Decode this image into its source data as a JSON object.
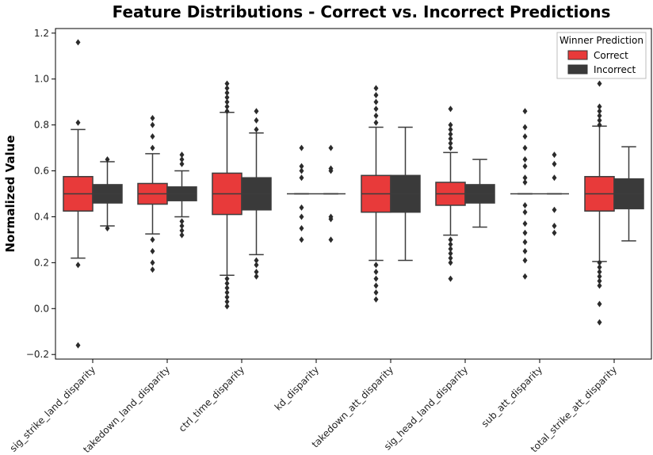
{
  "chart_data": {
    "type": "box",
    "title": "Feature Distributions - Correct vs. Incorrect Predictions",
    "xlabel": "",
    "ylabel": "Normalized Value",
    "ylim": [
      -0.22,
      1.22
    ],
    "yticks": [
      "−0.2",
      "0.0",
      "0.2",
      "0.4",
      "0.6",
      "0.8",
      "1.0",
      "1.2"
    ],
    "ytick_values": [
      -0.2,
      0.0,
      0.2,
      0.4,
      0.6,
      0.8,
      1.0,
      1.2
    ],
    "categories": [
      "sig_strike_land_disparity",
      "takedown_land_disparity",
      "ctrl_time_disparity",
      "kd_disparity",
      "takedown_att_disparity",
      "sig_head_land_disparity",
      "sub_att_disparity",
      "total_strike_att_disparity"
    ],
    "legend": {
      "title": "Winner Prediction",
      "position": "top-right"
    },
    "grid": false,
    "series": [
      {
        "name": "Correct",
        "color": "#e83a3a",
        "boxes": [
          {
            "q1": 0.425,
            "median": 0.5,
            "q3": 0.575,
            "whislo": 0.22,
            "whishi": 0.78,
            "fliers": [
              1.16,
              0.81,
              0.19,
              -0.16
            ]
          },
          {
            "q1": 0.455,
            "median": 0.5,
            "q3": 0.545,
            "whislo": 0.325,
            "whishi": 0.675,
            "fliers": [
              0.83,
              0.8,
              0.75,
              0.7,
              0.3,
              0.25,
              0.2,
              0.17
            ]
          },
          {
            "q1": 0.41,
            "median": 0.5,
            "q3": 0.59,
            "whislo": 0.145,
            "whishi": 0.855,
            "fliers": [
              0.98,
              0.96,
              0.94,
              0.92,
              0.9,
              0.88,
              0.86,
              0.13,
              0.11,
              0.09,
              0.07,
              0.05,
              0.03,
              0.01
            ]
          },
          {
            "q1": 0.5,
            "median": 0.5,
            "q3": 0.5,
            "whislo": 0.5,
            "whishi": 0.5,
            "fliers": [
              0.7,
              0.62,
              0.6,
              0.57,
              0.44,
              0.4,
              0.35,
              0.3
            ]
          },
          {
            "q1": 0.42,
            "median": 0.5,
            "q3": 0.58,
            "whislo": 0.21,
            "whishi": 0.79,
            "fliers": [
              0.96,
              0.93,
              0.9,
              0.87,
              0.84,
              0.81,
              0.19,
              0.16,
              0.13,
              0.1,
              0.07,
              0.04
            ]
          },
          {
            "q1": 0.45,
            "median": 0.5,
            "q3": 0.55,
            "whislo": 0.32,
            "whishi": 0.68,
            "fliers": [
              0.87,
              0.8,
              0.78,
              0.76,
              0.74,
              0.72,
              0.7,
              0.3,
              0.28,
              0.26,
              0.24,
              0.22,
              0.2,
              0.13
            ]
          },
          {
            "q1": 0.5,
            "median": 0.5,
            "q3": 0.5,
            "whislo": 0.5,
            "whishi": 0.5,
            "fliers": [
              0.86,
              0.79,
              0.75,
              0.7,
              0.65,
              0.62,
              0.57,
              0.55,
              0.45,
              0.42,
              0.37,
              0.33,
              0.29,
              0.25,
              0.21,
              0.14
            ]
          },
          {
            "q1": 0.425,
            "median": 0.5,
            "q3": 0.575,
            "whislo": 0.205,
            "whishi": 0.795,
            "fliers": [
              0.98,
              0.88,
              0.86,
              0.84,
              0.82,
              0.8,
              0.2,
              0.18,
              0.16,
              0.14,
              0.12,
              0.1,
              0.02,
              -0.06
            ]
          }
        ]
      },
      {
        "name": "Incorrect",
        "color": "#3a3a3a",
        "boxes": [
          {
            "q1": 0.46,
            "median": 0.5,
            "q3": 0.54,
            "whislo": 0.36,
            "whishi": 0.64,
            "fliers": [
              0.65,
              0.35
            ]
          },
          {
            "q1": 0.47,
            "median": 0.5,
            "q3": 0.53,
            "whislo": 0.4,
            "whishi": 0.6,
            "fliers": [
              0.67,
              0.65,
              0.63,
              0.38,
              0.36,
              0.34,
              0.32
            ]
          },
          {
            "q1": 0.43,
            "median": 0.5,
            "q3": 0.57,
            "whislo": 0.235,
            "whishi": 0.765,
            "fliers": [
              0.86,
              0.82,
              0.78,
              0.21,
              0.19,
              0.16,
              0.14
            ]
          },
          {
            "q1": 0.5,
            "median": 0.5,
            "q3": 0.5,
            "whislo": 0.5,
            "whishi": 0.5,
            "fliers": [
              0.7,
              0.61,
              0.6,
              0.4,
              0.39,
              0.3
            ]
          },
          {
            "q1": 0.42,
            "median": 0.5,
            "q3": 0.58,
            "whislo": 0.21,
            "whishi": 0.79,
            "fliers": []
          },
          {
            "q1": 0.46,
            "median": 0.5,
            "q3": 0.54,
            "whislo": 0.355,
            "whishi": 0.65,
            "fliers": []
          },
          {
            "q1": 0.5,
            "median": 0.5,
            "q3": 0.5,
            "whislo": 0.5,
            "whishi": 0.5,
            "fliers": [
              0.67,
              0.63,
              0.57,
              0.43,
              0.36,
              0.33
            ]
          },
          {
            "q1": 0.435,
            "median": 0.5,
            "q3": 0.565,
            "whislo": 0.295,
            "whishi": 0.705,
            "fliers": []
          }
        ]
      }
    ]
  }
}
